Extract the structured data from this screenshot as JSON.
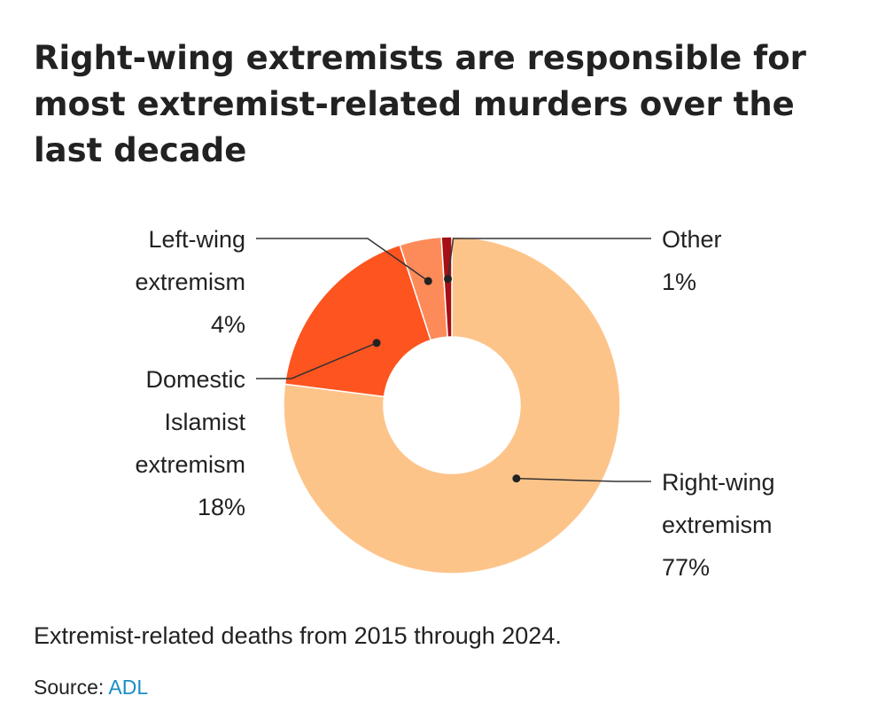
{
  "title": "Right-wing extremists are responsible for most extremist-related murders over the last decade",
  "chart_data": {
    "type": "pie",
    "donut": true,
    "slices": [
      {
        "label": "Right-wing extremism",
        "value": 77,
        "value_label": "77%",
        "color": "#fdc48a"
      },
      {
        "label": "Domestic Islamist extremism",
        "value": 18,
        "value_label": "18%",
        "color": "#fd5420"
      },
      {
        "label": "Left-wing extremism",
        "value": 4,
        "value_label": "4%",
        "color": "#fd8b5a"
      },
      {
        "label": "Other",
        "value": 1,
        "value_label": "1%",
        "color": "#a50f15"
      }
    ]
  },
  "note": "Extremist-related deaths from 2015 through 2024.",
  "source": {
    "prefix": "Source: ",
    "link_text": "ADL"
  }
}
